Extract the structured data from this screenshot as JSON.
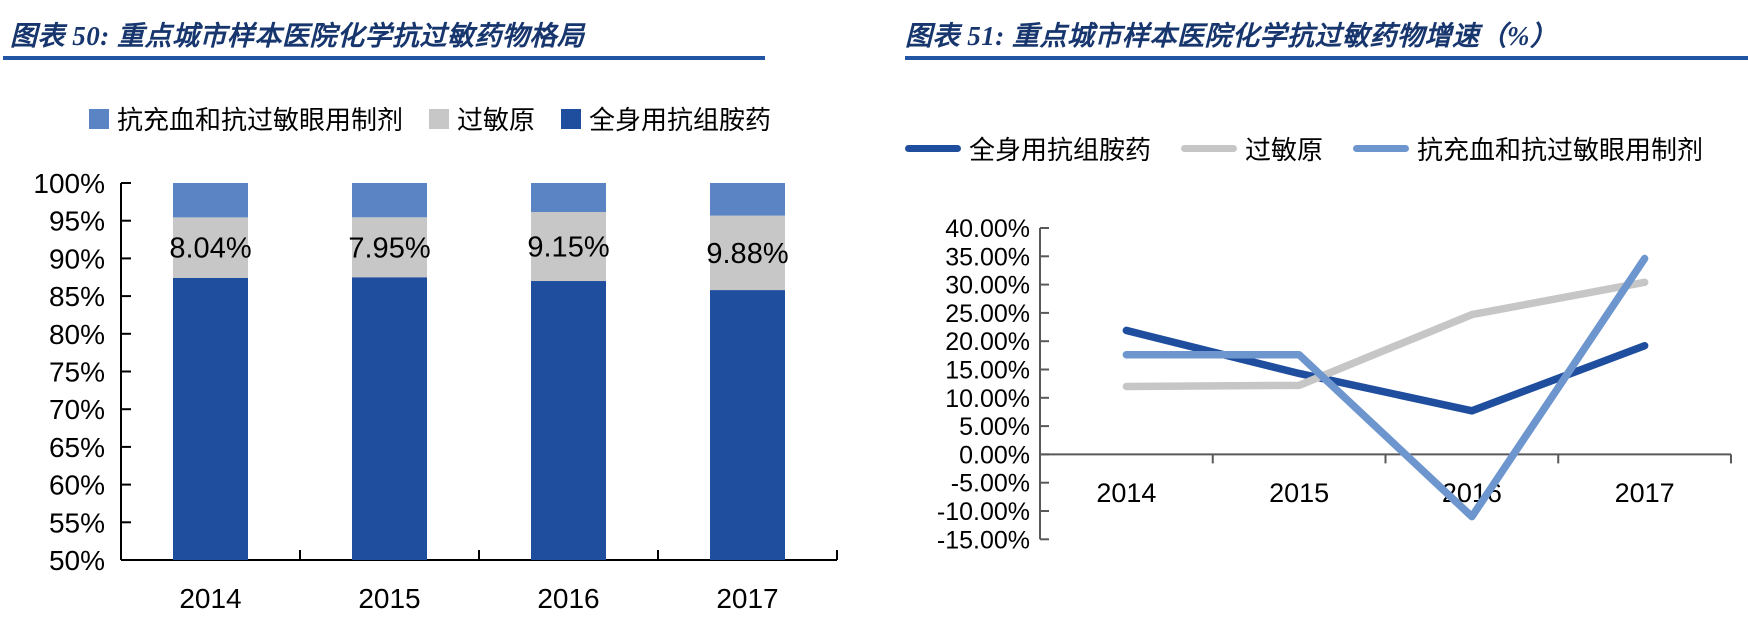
{
  "style": {
    "title_color": "#17366E",
    "rule_color": "#2155A4",
    "left_axis_color": "#000000",
    "right_axis_color": "#595959",
    "text_color": "#000000"
  },
  "chart_data": [
    {
      "type": "bar",
      "stacked": true,
      "title": "图表 50:  重点城市样本医院化学抗过敏药物格局",
      "categories": [
        "2014",
        "2015",
        "2016",
        "2017"
      ],
      "series": [
        {
          "name": "全身用抗组胺药",
          "color": "#1F4E9E",
          "values": [
            87.4,
            87.5,
            87.0,
            85.8
          ],
          "show_labels": false
        },
        {
          "name": "过敏原",
          "color": "#C7C7C7",
          "values": [
            8.04,
            7.95,
            9.15,
            9.88
          ],
          "show_labels": true
        },
        {
          "name": "抗充血和抗过敏眼用制剂",
          "color": "#5B84C4",
          "values": [
            4.56,
            4.55,
            3.85,
            4.32
          ],
          "show_labels": false
        }
      ],
      "data_labels": [
        "8.04%",
        "7.95%",
        "9.15%",
        "9.88%"
      ],
      "ylim": [
        50,
        100
      ],
      "ytick_step": 5,
      "ytick_labels": [
        "50%",
        "55%",
        "60%",
        "65%",
        "70%",
        "75%",
        "80%",
        "85%",
        "90%",
        "95%",
        "100%"
      ],
      "legend_order": [
        "抗充血和抗过敏眼用制剂",
        "过敏原",
        "全身用抗组胺药"
      ],
      "legend_position": "top",
      "grid": false
    },
    {
      "type": "line",
      "title": "图表 51:  重点城市样本医院化学抗过敏药物增速（%）",
      "categories": [
        "2014",
        "2015",
        "2016",
        "2017"
      ],
      "series": [
        {
          "name": "全身用抗组胺药",
          "color": "#1F4E9E",
          "values": [
            21.9,
            14.3,
            7.7,
            19.2
          ]
        },
        {
          "name": "过敏原",
          "color": "#C6C6C6",
          "values": [
            12.0,
            12.2,
            24.7,
            30.4
          ]
        },
        {
          "name": "抗充血和抗过敏眼用制剂",
          "color": "#6E96CE",
          "values": [
            17.6,
            17.6,
            -11.0,
            34.6
          ]
        }
      ],
      "ylim": [
        -15,
        40
      ],
      "ytick_step": 5,
      "ytick_labels": [
        "40.00%",
        "35.00%",
        "30.00%",
        "25.00%",
        "20.00%",
        "15.00%",
        "10.00%",
        "5.00%",
        "0.00%",
        "-5.00%",
        "-10.00%",
        "-15.00%"
      ],
      "legend_position": "top",
      "grid": false
    }
  ]
}
